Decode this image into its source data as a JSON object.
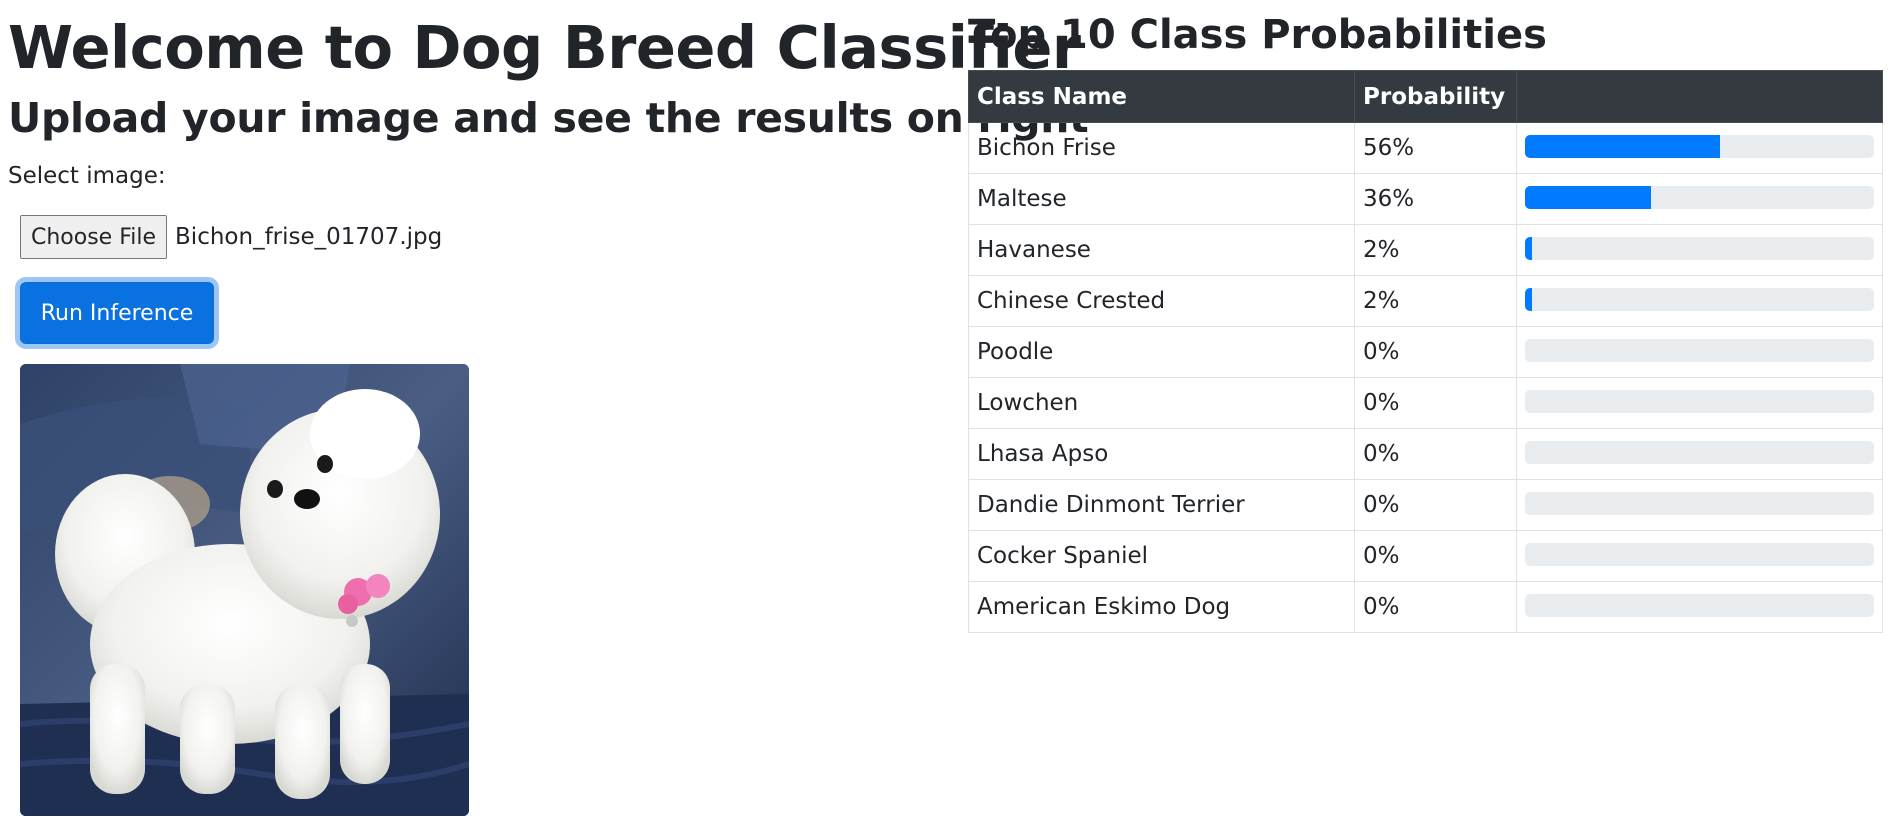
{
  "header": {
    "title": "Welcome to Dog Breed Classifier",
    "subtitle": "Upload your image and see the results on right"
  },
  "upload": {
    "select_label": "Select image:",
    "choose_file_label": "Choose File",
    "file_name": "Bichon_frise_01707.jpg",
    "run_button_label": "Run Inference"
  },
  "results": {
    "title": "Top 10 Class Probabilities",
    "columns": [
      "Class Name",
      "Probability"
    ],
    "bar_color": "#007bff",
    "rows": [
      {
        "name": "Bichon Frise",
        "prob": "56%",
        "value": 0.56
      },
      {
        "name": "Maltese",
        "prob": "36%",
        "value": 0.36
      },
      {
        "name": "Havanese",
        "prob": "2%",
        "value": 0.02
      },
      {
        "name": "Chinese Crested",
        "prob": "2%",
        "value": 0.02
      },
      {
        "name": "Poodle",
        "prob": "0%",
        "value": 0
      },
      {
        "name": "Lowchen",
        "prob": "0%",
        "value": 0
      },
      {
        "name": "Lhasa Apso",
        "prob": "0%",
        "value": 0
      },
      {
        "name": "Dandie Dinmont Terrier",
        "prob": "0%",
        "value": 0
      },
      {
        "name": "Cocker Spaniel",
        "prob": "0%",
        "value": 0
      },
      {
        "name": "American Eskimo Dog",
        "prob": "0%",
        "value": 0
      }
    ]
  }
}
